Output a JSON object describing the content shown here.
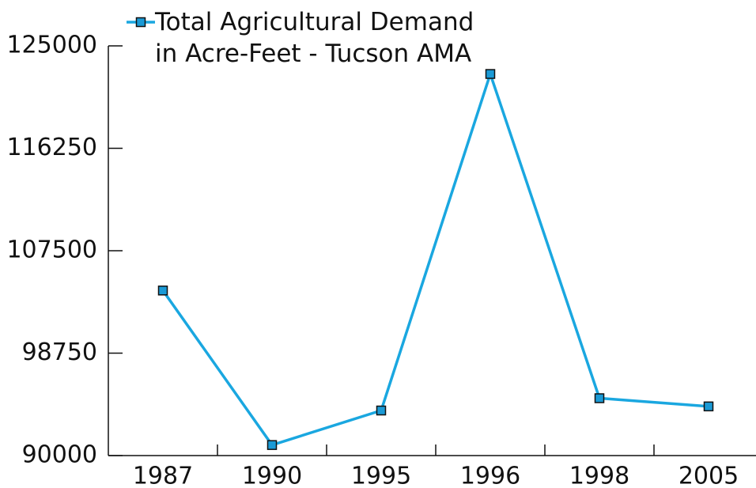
{
  "chart_data": {
    "type": "line",
    "categories": [
      "1987",
      "1990",
      "1995",
      "1996",
      "1998",
      "2005"
    ],
    "series": [
      {
        "name": "Total Agricultural Demand in Acre-Feet - Tucson AMA",
        "color": "#1aa7e0",
        "marker_color": "#1a9ad6",
        "values": [
          104100,
          90900,
          93850,
          122600,
          94900,
          94200
        ]
      }
    ],
    "ylim": [
      90000,
      125000
    ],
    "yticks": [
      90000,
      98750,
      107500,
      116250,
      125000
    ],
    "grid": false,
    "legend": "top"
  }
}
